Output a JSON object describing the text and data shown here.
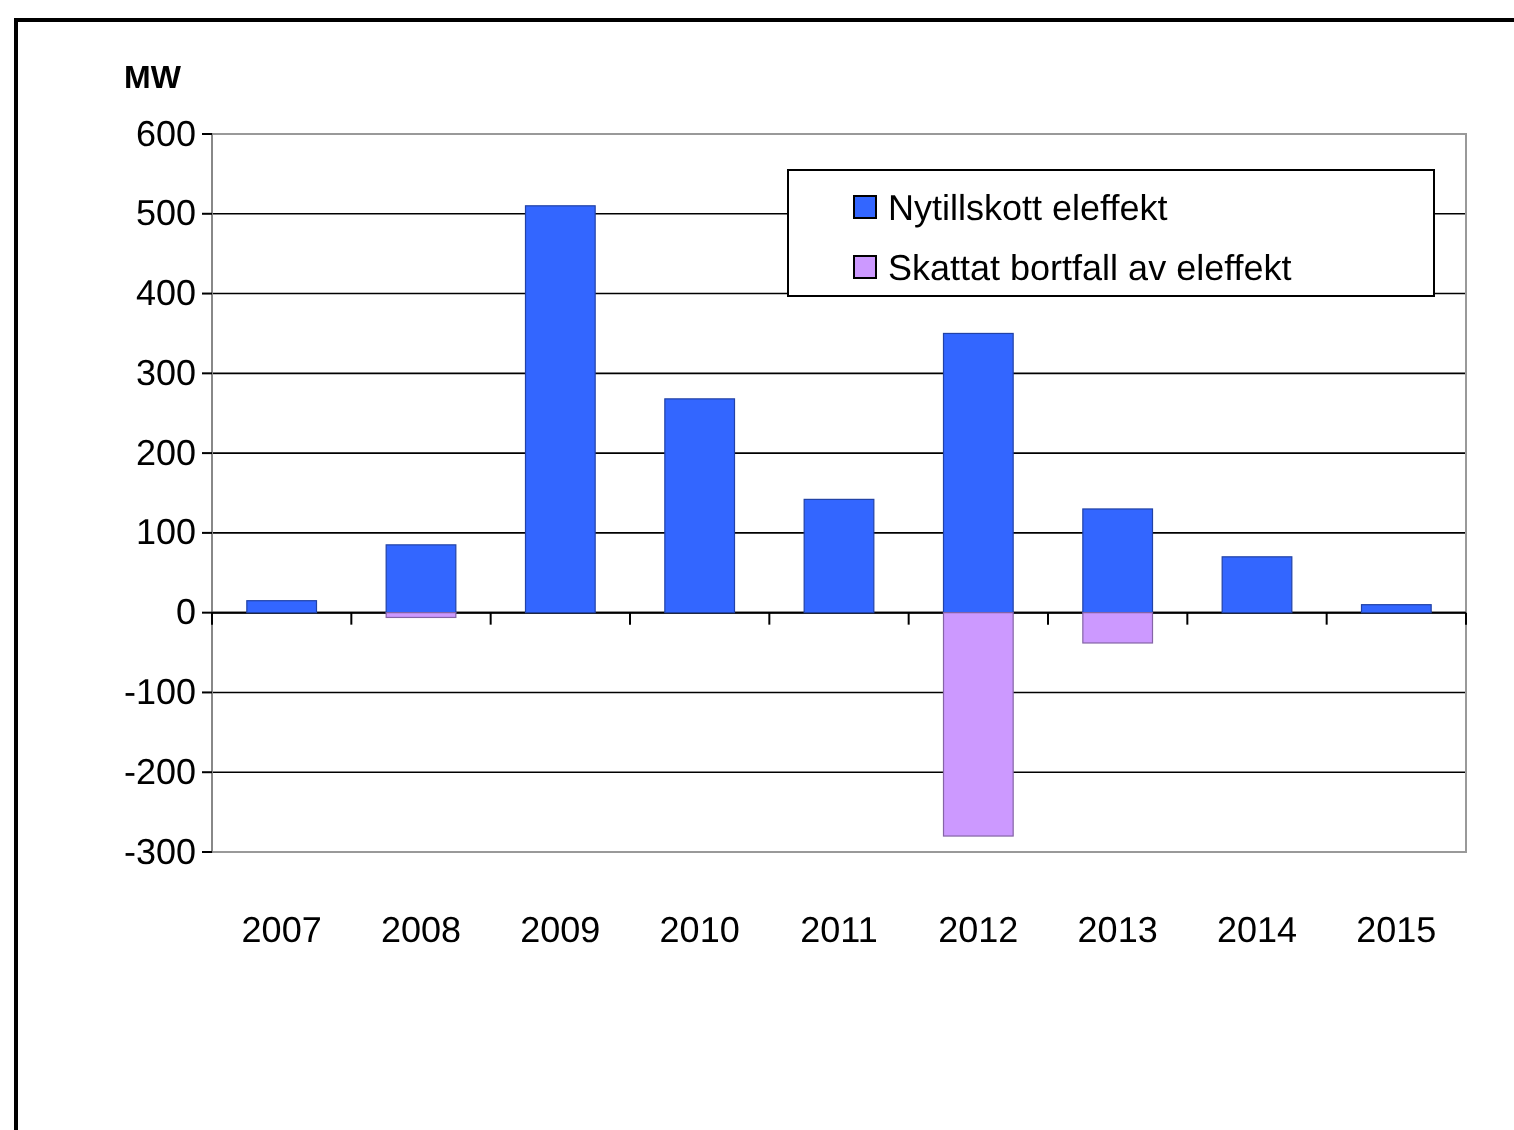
{
  "chart_data": {
    "type": "bar",
    "stacked": true,
    "ylabel": "MW",
    "categories": [
      "2007",
      "2008",
      "2009",
      "2010",
      "2011",
      "2012",
      "2013",
      "2014",
      "2015"
    ],
    "series": [
      {
        "name": "Nytillskott eleffekt",
        "color": "#3366ff",
        "values": [
          15,
          85,
          510,
          268,
          142,
          350,
          130,
          70,
          10
        ]
      },
      {
        "name": "Skattat bortfall av eleffekt",
        "color": "#cc99ff",
        "values": [
          null,
          -6,
          null,
          null,
          null,
          -280,
          -38,
          null,
          null
        ]
      }
    ],
    "ylim": [
      -300,
      600
    ],
    "yticks": [
      -300,
      -200,
      -100,
      0,
      100,
      200,
      300,
      400,
      500,
      600
    ],
    "grid": "y",
    "legend": "top right"
  }
}
